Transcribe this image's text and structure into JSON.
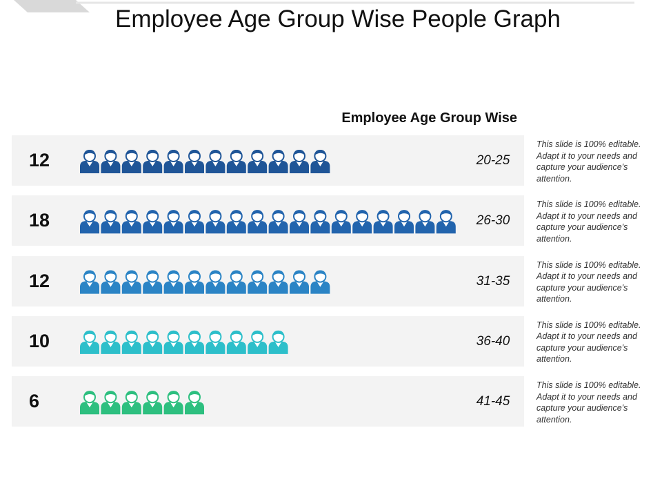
{
  "chart_data": {
    "type": "pictograph",
    "title": "Employee Age Group Wise People Graph",
    "subtitle": "Employee Age Group Wise",
    "categories": [
      "20-25",
      "26-30",
      "31-35",
      "36-40",
      "41-45"
    ],
    "values": [
      12,
      18,
      12,
      10,
      6
    ],
    "colors": [
      "#1f5597",
      "#2264ad",
      "#2b84c5",
      "#2dbfca",
      "#2dbf7f"
    ],
    "notes": [
      "This slide is 100% editable. Adapt it to your needs and capture your audience's attention.",
      "This slide is 100% editable. Adapt it to your needs and capture your audience's attention.",
      "This slide is 100% editable. Adapt it to your needs and capture your audience's attention.",
      "This slide is 100% editable. Adapt it to your needs and capture your audience's attention.",
      "This slide is 100% editable. Adapt it to your needs and capture your audience's attention."
    ]
  }
}
